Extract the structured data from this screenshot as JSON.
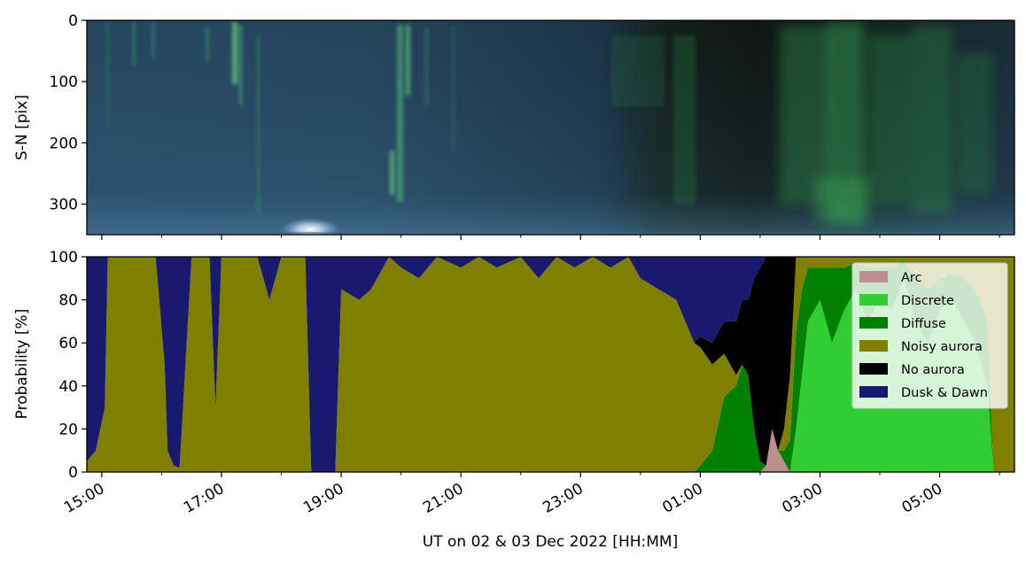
{
  "chart_data": [
    {
      "type": "heatmap",
      "ylabel": "S-N [pix]",
      "yticks": [
        "0",
        "100",
        "200",
        "300"
      ],
      "ylim": [
        0,
        350
      ],
      "y_inverted": true,
      "colors": {
        "sky_blue": "#28506e",
        "dark": "#0e1614",
        "aurora_green": "#3cb45a",
        "bright_green": "#7cf08e"
      }
    },
    {
      "type": "area",
      "stacked": true,
      "ylabel": "Probability [%]",
      "xlabel": "UT on 02 & 03 Dec 2022 [HH:MM]",
      "xticks": [
        "15:00",
        "17:00",
        "19:00",
        "21:00",
        "23:00",
        "01:00",
        "03:00",
        "05:00"
      ],
      "yticks": [
        "0",
        "20",
        "40",
        "60",
        "80",
        "100"
      ],
      "ylim": [
        0,
        100
      ],
      "x_hours_range": [
        14.75,
        30.25
      ],
      "legend_position": "upper right",
      "series": [
        {
          "name": "Arc",
          "color": "#bc8f8f"
        },
        {
          "name": "Discrete",
          "color": "#32cd32"
        },
        {
          "name": "Diffuse",
          "color": "#008000"
        },
        {
          "name": "Noisy aurora",
          "color": "#808000"
        },
        {
          "name": "No aurora",
          "color": "#000000"
        },
        {
          "name": "Dusk & Dawn",
          "color": "#191970"
        }
      ],
      "x_hours": [
        14.75,
        14.9,
        15.05,
        15.1,
        15.5,
        15.9,
        16.05,
        16.1,
        16.2,
        16.3,
        16.5,
        16.8,
        16.9,
        17.0,
        17.3,
        17.6,
        17.8,
        18.0,
        18.2,
        18.4,
        18.5,
        18.8,
        18.9,
        19.0,
        19.3,
        19.5,
        19.7,
        19.8,
        20.0,
        20.3,
        20.6,
        21.0,
        21.3,
        21.6,
        22.0,
        22.3,
        22.6,
        22.9,
        23.2,
        23.5,
        23.8,
        24.0,
        24.3,
        24.6,
        24.9,
        25.0,
        25.2,
        25.4,
        25.6,
        25.7,
        25.8,
        25.9,
        26.0,
        26.1,
        26.2,
        26.3,
        26.4,
        26.5,
        26.6,
        26.7,
        26.8,
        27.0,
        27.2,
        27.4,
        27.6,
        27.8,
        28.0,
        28.2,
        28.4,
        28.6,
        28.8,
        29.0,
        29.2,
        29.4,
        29.6,
        29.8,
        29.9,
        30.0,
        30.25
      ],
      "values": {
        "Arc": [
          0,
          0,
          0,
          0,
          0,
          0,
          0,
          0,
          0,
          0,
          0,
          0,
          0,
          0,
          0,
          0,
          0,
          0,
          0,
          0,
          0,
          0,
          0,
          0,
          0,
          0,
          0,
          0,
          0,
          0,
          0,
          0,
          0,
          0,
          0,
          0,
          0,
          0,
          0,
          0,
          0,
          0,
          0,
          0,
          0,
          0,
          0,
          0,
          0,
          0,
          0,
          0,
          0,
          3,
          20,
          10,
          5,
          0,
          0,
          0,
          0,
          0,
          0,
          0,
          0,
          0,
          0,
          0,
          0,
          0,
          0,
          0,
          0,
          0,
          0,
          0,
          0,
          0,
          0
        ],
        "Discrete": [
          0,
          0,
          0,
          0,
          0,
          0,
          0,
          0,
          0,
          0,
          0,
          0,
          0,
          0,
          0,
          0,
          0,
          0,
          0,
          0,
          0,
          0,
          0,
          0,
          0,
          0,
          0,
          0,
          0,
          0,
          0,
          0,
          0,
          0,
          0,
          0,
          0,
          0,
          0,
          0,
          0,
          0,
          0,
          0,
          0,
          0,
          0,
          0,
          0,
          0,
          0,
          0,
          0,
          0,
          0,
          0,
          0,
          0,
          20,
          45,
          70,
          80,
          60,
          75,
          85,
          70,
          80,
          75,
          90,
          70,
          60,
          75,
          80,
          70,
          60,
          40,
          0,
          0,
          0
        ],
        "Diffuse": [
          0,
          0,
          0,
          0,
          0,
          0,
          0,
          0,
          0,
          0,
          0,
          0,
          0,
          0,
          0,
          0,
          0,
          0,
          0,
          0,
          0,
          0,
          0,
          0,
          0,
          0,
          0,
          0,
          0,
          0,
          0,
          0,
          0,
          0,
          0,
          0,
          0,
          0,
          0,
          0,
          0,
          0,
          0,
          0,
          0,
          3,
          10,
          35,
          40,
          50,
          45,
          20,
          5,
          0,
          0,
          0,
          5,
          15,
          45,
          40,
          25,
          15,
          35,
          20,
          12,
          25,
          15,
          20,
          8,
          20,
          25,
          15,
          12,
          20,
          25,
          30,
          0,
          0,
          0
        ],
        "Noisy aurora": [
          5,
          10,
          30,
          100,
          100,
          100,
          50,
          10,
          3,
          2,
          100,
          100,
          30,
          100,
          100,
          100,
          80,
          100,
          100,
          100,
          0,
          0,
          0,
          85,
          80,
          85,
          95,
          100,
          95,
          90,
          100,
          95,
          100,
          95,
          100,
          90,
          100,
          95,
          100,
          95,
          100,
          90,
          85,
          80,
          60,
          55,
          40,
          20,
          5,
          0,
          0,
          0,
          0,
          0,
          0,
          0,
          10,
          30,
          35,
          15,
          5,
          5,
          5,
          5,
          3,
          5,
          5,
          5,
          2,
          10,
          15,
          10,
          8,
          10,
          15,
          30,
          100,
          100,
          100
        ],
        "No aurora": [
          0,
          0,
          0,
          0,
          0,
          0,
          0,
          0,
          0,
          0,
          0,
          0,
          0,
          0,
          0,
          0,
          0,
          0,
          0,
          0,
          0,
          0,
          0,
          0,
          0,
          0,
          0,
          0,
          0,
          0,
          0,
          0,
          0,
          0,
          0,
          0,
          0,
          0,
          0,
          0,
          0,
          0,
          0,
          0,
          0,
          5,
          10,
          15,
          25,
          30,
          35,
          70,
          90,
          97,
          80,
          90,
          84,
          55,
          0,
          0,
          0,
          0,
          0,
          0,
          0,
          0,
          0,
          0,
          0,
          0,
          0,
          0,
          0,
          0,
          0,
          0,
          0,
          0,
          0
        ],
        "Dusk & Dawn": [
          95,
          90,
          70,
          0,
          0,
          0,
          50,
          90,
          97,
          98,
          0,
          0,
          70,
          0,
          0,
          0,
          20,
          0,
          0,
          0,
          100,
          100,
          100,
          15,
          20,
          15,
          5,
          0,
          5,
          10,
          0,
          5,
          0,
          5,
          0,
          10,
          0,
          5,
          0,
          5,
          0,
          10,
          15,
          20,
          40,
          37,
          40,
          30,
          30,
          20,
          20,
          10,
          5,
          0,
          0,
          0,
          0,
          0,
          0,
          0,
          0,
          0,
          0,
          0,
          0,
          0,
          0,
          0,
          0,
          0,
          0,
          0,
          0,
          0,
          0,
          0,
          0,
          0,
          0
        ]
      }
    }
  ]
}
